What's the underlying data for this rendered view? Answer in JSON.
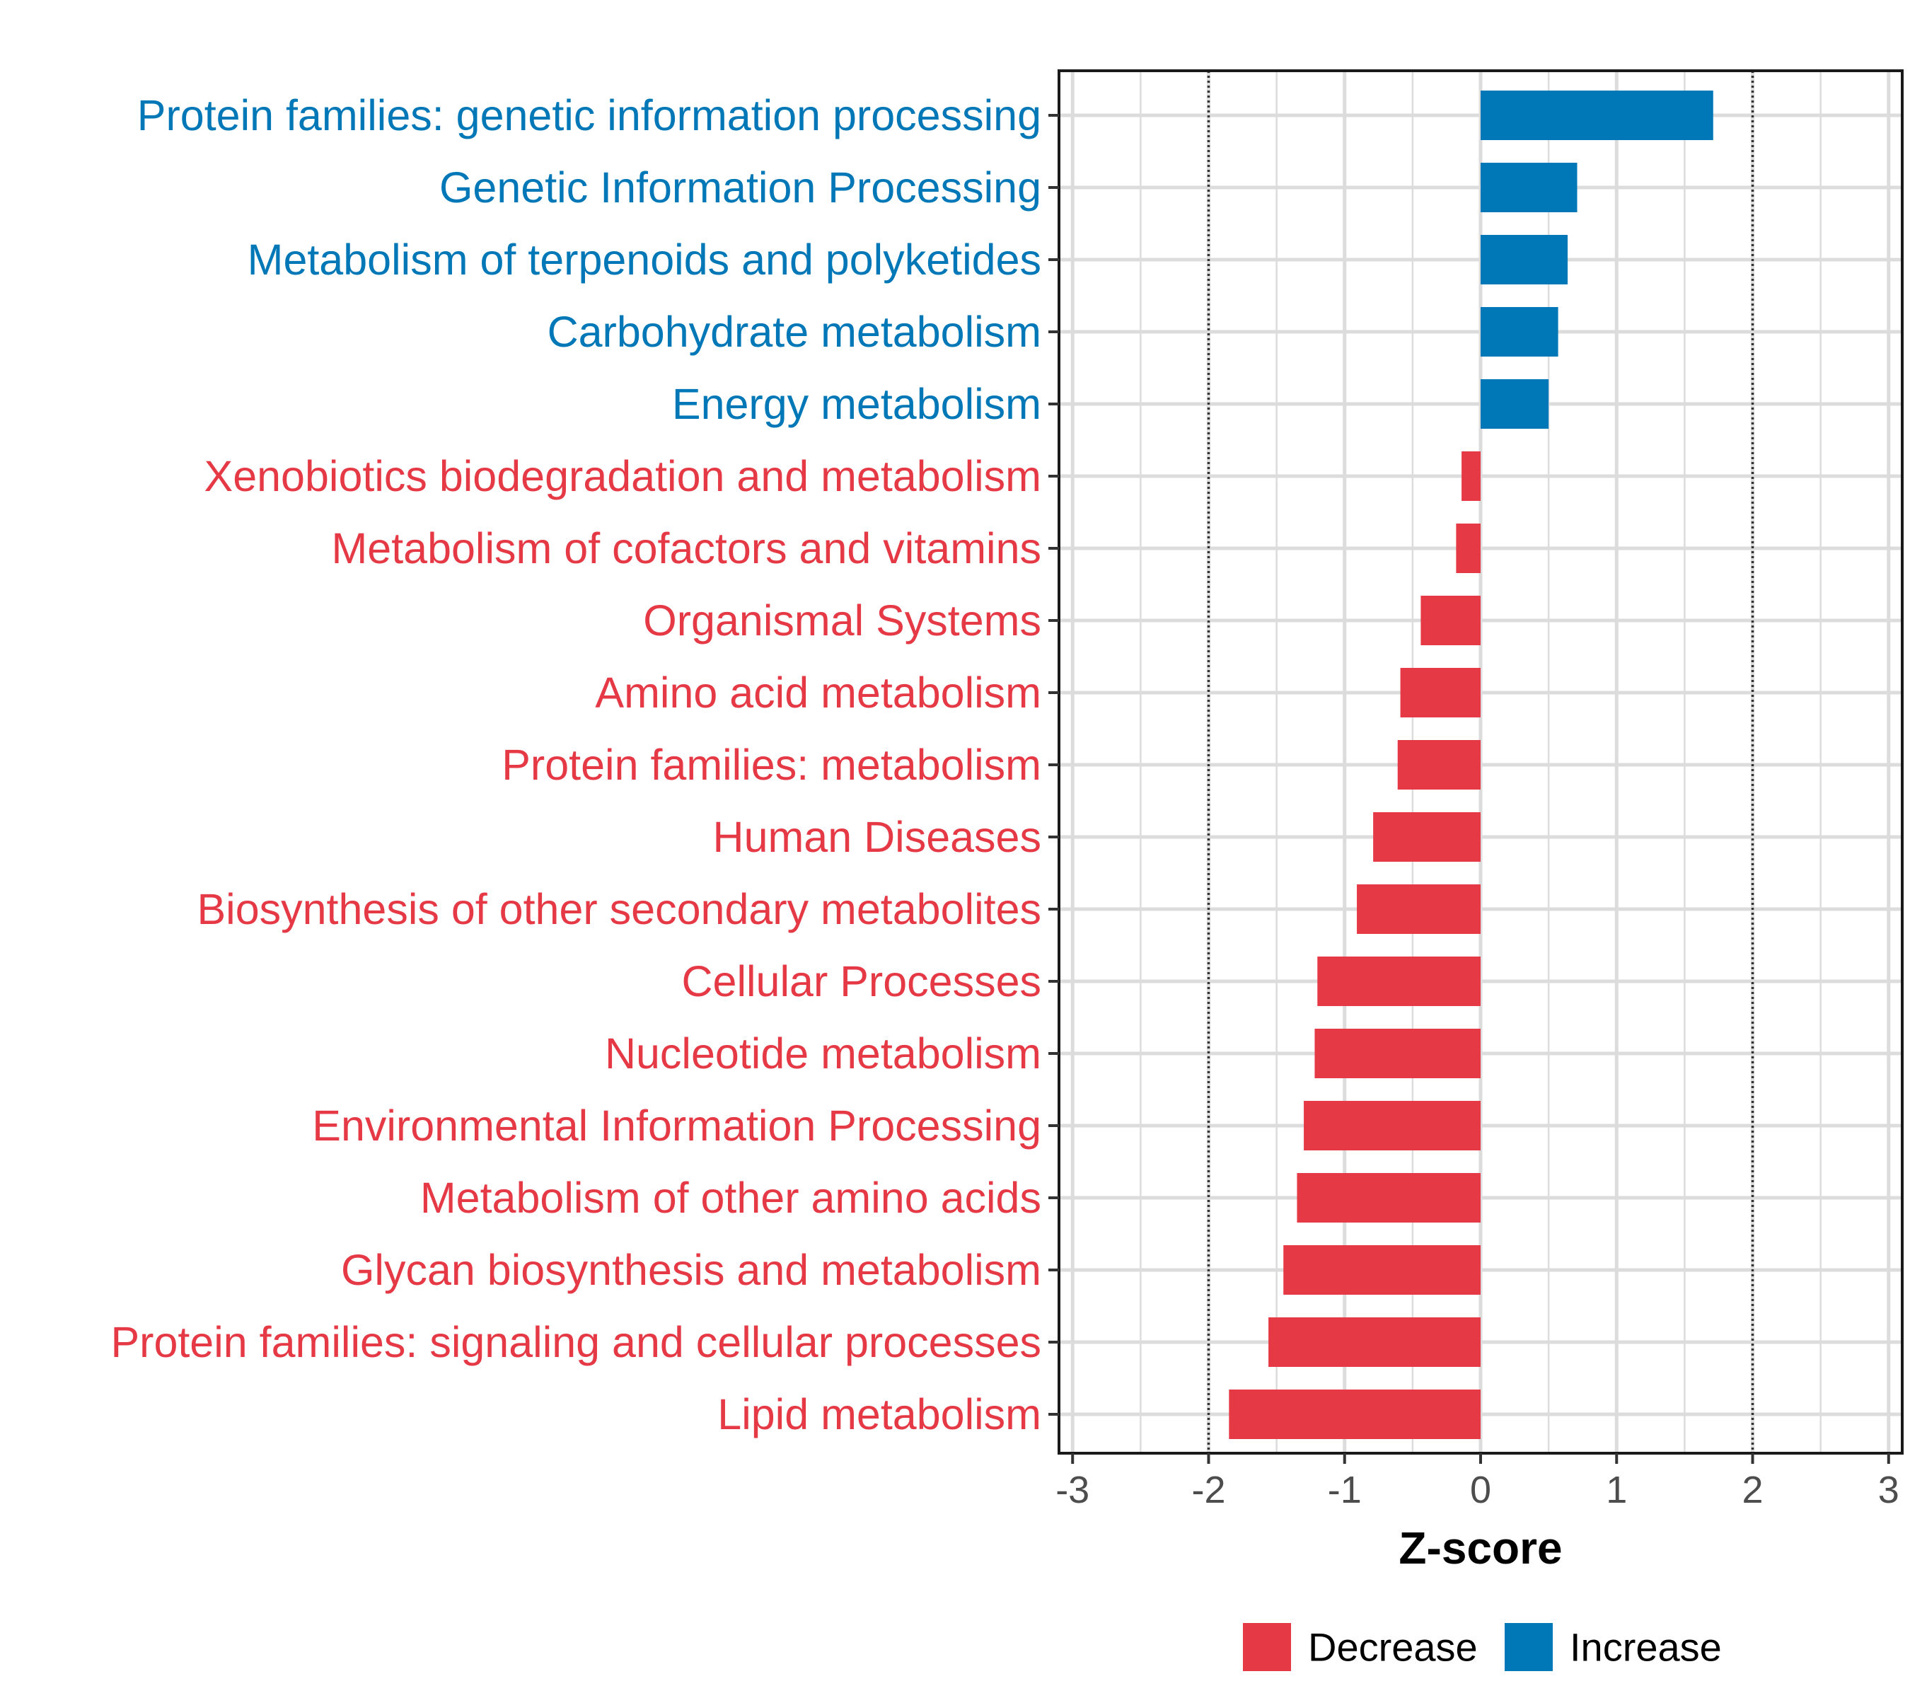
{
  "chart_data": {
    "type": "bar",
    "orientation": "horizontal",
    "title": "",
    "xlabel": "Z-score",
    "ylabel": "",
    "xlim": [
      -3.1,
      3.1
    ],
    "xticks": [
      -3,
      -2,
      -1,
      0,
      1,
      2,
      3
    ],
    "xtick_labels": [
      "-3",
      "-2",
      "-1",
      "0",
      "1",
      "2",
      "3"
    ],
    "reference_lines": [
      -2,
      2
    ],
    "grid": true,
    "legend_position": "bottom",
    "legend": [
      {
        "label": "Decrease",
        "color": "#E63946"
      },
      {
        "label": "Increase",
        "color": "#0077B6"
      }
    ],
    "categories": [
      "Protein families: genetic information processing",
      "Genetic Information Processing",
      "Metabolism of terpenoids and polyketides",
      "Carbohydrate metabolism",
      "Energy metabolism",
      "Xenobiotics biodegradation and metabolism",
      "Metabolism of cofactors and vitamins",
      "Organismal Systems",
      "Amino acid metabolism",
      "Protein families: metabolism",
      "Human Diseases",
      "Biosynthesis of other secondary metabolites",
      "Cellular Processes",
      "Nucleotide metabolism",
      "Environmental Information Processing",
      "Metabolism of other amino acids",
      "Glycan biosynthesis and metabolism",
      "Protein families: signaling and cellular processes",
      "Lipid metabolism"
    ],
    "values": [
      1.71,
      0.71,
      0.64,
      0.57,
      0.5,
      -0.14,
      -0.18,
      -0.44,
      -0.59,
      -0.61,
      -0.79,
      -0.91,
      -1.2,
      -1.22,
      -1.3,
      -1.35,
      -1.45,
      -1.56,
      -1.85
    ],
    "groups": [
      "Increase",
      "Increase",
      "Increase",
      "Increase",
      "Increase",
      "Decrease",
      "Decrease",
      "Decrease",
      "Decrease",
      "Decrease",
      "Decrease",
      "Decrease",
      "Decrease",
      "Decrease",
      "Decrease",
      "Decrease",
      "Decrease",
      "Decrease",
      "Decrease"
    ]
  }
}
